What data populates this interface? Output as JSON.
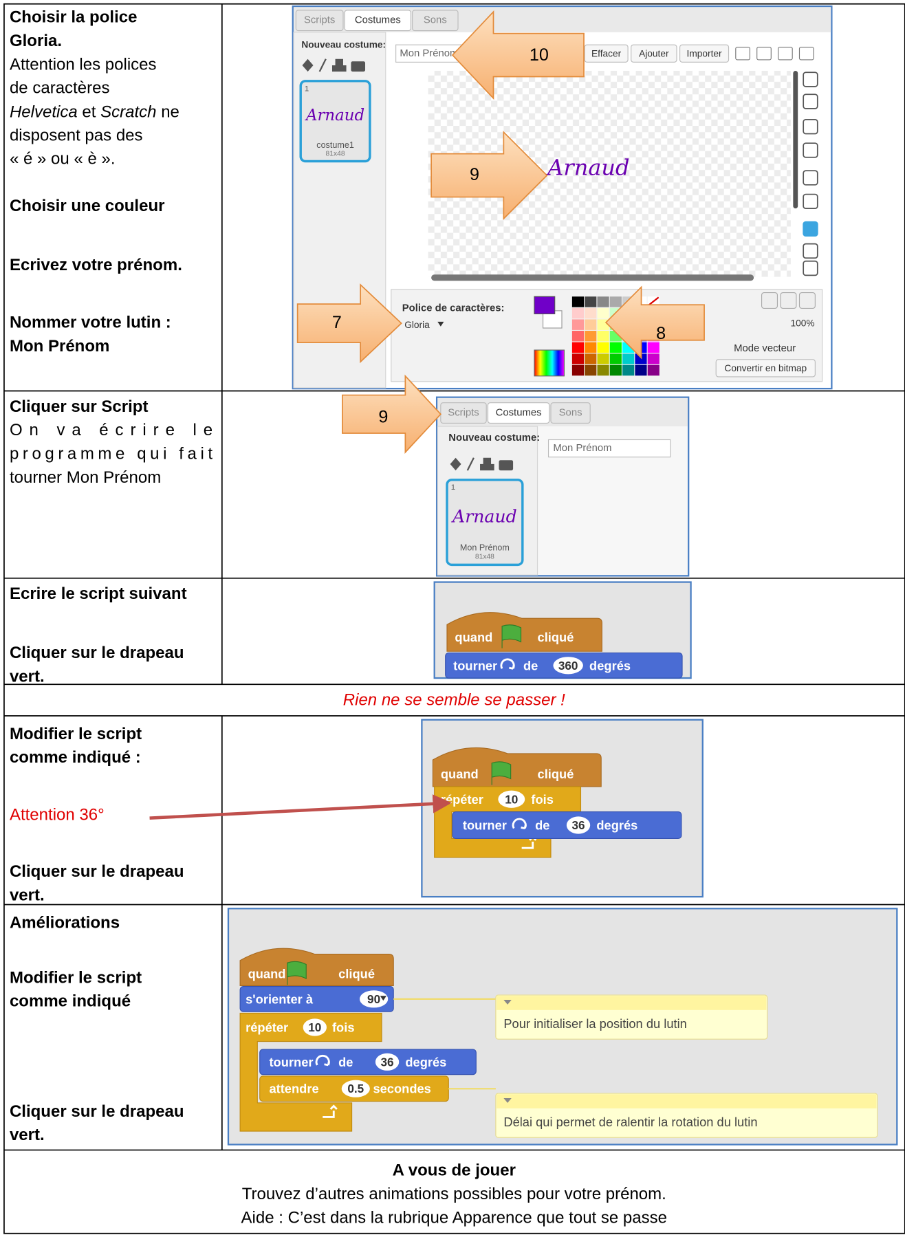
{
  "rows": [
    {
      "instructions": [
        "Choisir la police",
        "Gloria.",
        "Attention les polices",
        "de caractères",
        [
          "Helvetica",
          " et ",
          "Scratch",
          " ne"
        ],
        "disposent pas des",
        "« é » ou « è ».",
        "Choisir une couleur",
        "Ecrivez votre prénom.",
        "Nommer votre lutin :",
        "Mon Prénom"
      ],
      "screenshot": {
        "tabs": [
          "Scripts",
          "Costumes",
          "Sons"
        ],
        "new_costume_label": "Nouveau costume:",
        "costume_name": "Mon Prénom",
        "costume_number": "1",
        "costume_drawing": "Arnaud",
        "costume_caption": "costume1",
        "costume_size": "81x48",
        "buttons": [
          "Effacer",
          "Ajouter",
          "Importer"
        ],
        "canvas_text": "Arnaud",
        "font_label": "Police de caractères:",
        "font_name": "Gloria",
        "zoom": "100%",
        "mode": "Mode vecteur",
        "convert_button": "Convertir en bitmap",
        "callouts": [
          "10",
          "9",
          "7",
          "8"
        ]
      }
    },
    {
      "instructions": [
        "Cliquer sur Script",
        "On va écrire le",
        "programme qui fait",
        "tourner Mon Prénom"
      ],
      "screenshot": {
        "tabs": [
          "Scripts",
          "Costumes",
          "Sons"
        ],
        "new_costume_label": "Nouveau costume:",
        "costume_name": "Mon Prénom",
        "costume_number": "1",
        "costume_drawing": "Arnaud",
        "costume_caption": "Mon Prénom",
        "costume_size": "81x48",
        "callouts": [
          "9"
        ]
      }
    },
    {
      "instructions": [
        "Ecrire le script suivant",
        "Cliquer sur le drapeau",
        "vert."
      ],
      "script": {
        "blocks": [
          [
            "quand",
            "cliqué"
          ],
          [
            "tourner",
            "de",
            "360",
            "degrés"
          ]
        ]
      }
    },
    {
      "note": "Rien ne se semble se passer !"
    },
    {
      "instructions": [
        "Modifier le script",
        "comme indiqué :",
        "Attention 36°",
        "Cliquer sur le drapeau",
        "vert."
      ],
      "script": {
        "blocks": [
          [
            "quand",
            "cliqué"
          ],
          [
            "répéter",
            "10",
            "fois"
          ],
          [
            "tourner",
            "de",
            "36",
            "degrés"
          ]
        ]
      }
    },
    {
      "instructions": [
        "Améliorations",
        "Modifier le script",
        "comme indiqué",
        "Cliquer sur le drapeau",
        "vert."
      ],
      "script": {
        "blocks": [
          [
            "quand",
            "cliqué"
          ],
          [
            "s'orienter à",
            "90"
          ],
          [
            "répéter",
            "10",
            "fois"
          ],
          [
            "tourner",
            "de",
            "36",
            "degrés"
          ],
          [
            "attendre",
            "0.5",
            "secondes"
          ]
        ],
        "comments": [
          "Pour initialiser la position du lutin",
          "Délai qui permet de ralentir la rotation du lutin"
        ]
      }
    },
    {
      "lines": [
        "A vous de jouer",
        "Trouvez d’autres animations possibles pour votre prénom.",
        "Aide : C’est dans la rubrique Apparence que tout se passe"
      ]
    }
  ]
}
